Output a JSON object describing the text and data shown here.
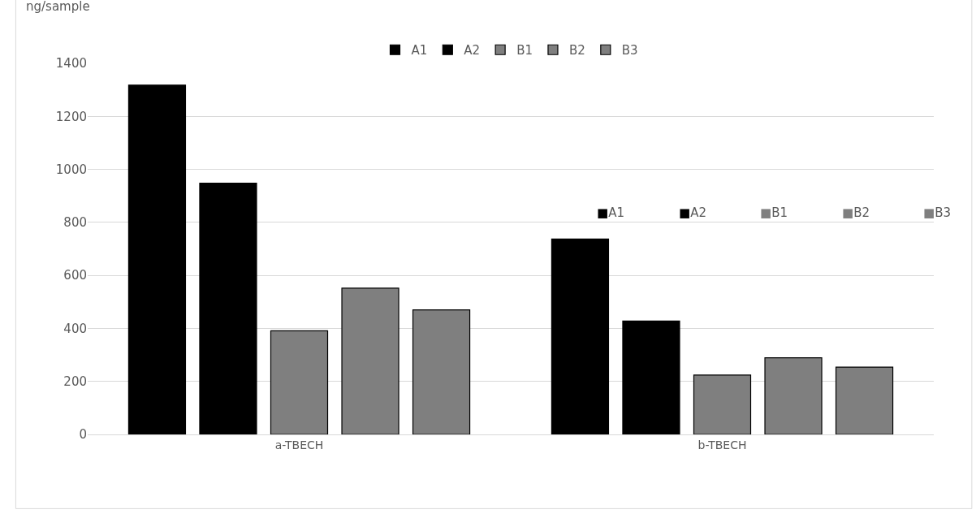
{
  "chart_data": {
    "type": "bar",
    "ylabel": "ng/sample",
    "categories": [
      "a-TBECH",
      "b-TBECH"
    ],
    "series": [
      {
        "name": "A1",
        "color": "#000000",
        "values": [
          1318,
          737
        ]
      },
      {
        "name": "A2",
        "color": "#000000",
        "values": [
          948,
          428
        ]
      },
      {
        "name": "B1",
        "color": "#7f7f7f",
        "values": [
          391,
          224
        ]
      },
      {
        "name": "B2",
        "color": "#7f7f7f",
        "values": [
          552,
          289
        ]
      },
      {
        "name": "B3",
        "color": "#7f7f7f",
        "values": [
          470,
          254
        ]
      }
    ],
    "annotations": [
      "■A1",
      "■A2",
      "■B1",
      "■B2",
      "■B3"
    ],
    "ylim": [
      0,
      1400
    ],
    "yticks": [
      0,
      200,
      400,
      600,
      800,
      1000,
      1200,
      1400
    ],
    "grid": "y",
    "legend": "top"
  }
}
